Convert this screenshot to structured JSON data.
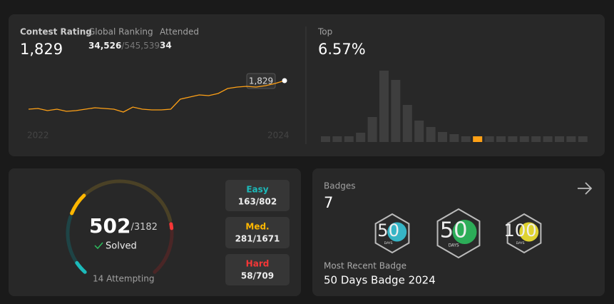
{
  "contest": {
    "rating_label": "Contest Rating",
    "rating": "1,829",
    "ranking_label": "Global Ranking",
    "ranking": "34,526",
    "ranking_total": "/545,539",
    "attended_label": "Attended",
    "attended": "34",
    "start_year": "2022",
    "end_year": "2024",
    "tooltip": "1,829",
    "history": [
      1509,
      1517,
      1493,
      1509,
      1485,
      1493,
      1509,
      1525,
      1517,
      1509,
      1477,
      1533,
      1509,
      1501,
      1501,
      1509,
      1621,
      1645,
      1669,
      1661,
      1685,
      1741,
      1757,
      1765,
      1757,
      1773,
      1797,
      1829
    ],
    "line_color": "#ffa116"
  },
  "top": {
    "label": "Top",
    "value": "6.57%",
    "distribution": [
      8,
      8,
      8,
      13,
      35,
      100,
      87,
      52,
      30,
      21,
      14,
      11,
      8,
      8,
      8,
      8,
      8,
      8,
      8,
      8,
      8,
      8,
      8
    ],
    "highlight": 13,
    "bar_color": "#3e3e3e",
    "highlight_color": "#ffa116"
  },
  "solved": {
    "count": 502,
    "total": {
      "value": 3182,
      "label": "/3182"
    },
    "label": "Solved",
    "attempting": "14 Attempting",
    "levels": [
      {
        "name": "Easy",
        "solved": 163,
        "total": 802,
        "value_label": "163/802",
        "color": "#1cbaba",
        "dim": "#1e4446"
      },
      {
        "name": "Med.",
        "solved": 281,
        "total": 1671,
        "value_label": "281/1671",
        "color": "#ffb700",
        "dim": "#4a4126"
      },
      {
        "name": "Hard",
        "solved": 58,
        "total": 709,
        "value_label": "58/709",
        "color": "#f63737",
        "dim": "#4a2626"
      }
    ]
  },
  "badges": {
    "label": "Badges",
    "count": "7",
    "items": [
      {
        "number": "50",
        "caption": "DAYS"
      },
      {
        "number": "50",
        "caption": "DAYS"
      },
      {
        "number": "100",
        "caption": "DAYS"
      }
    ],
    "recent_label": "Most Recent Badge",
    "recent": "50 Days Badge 2024"
  }
}
